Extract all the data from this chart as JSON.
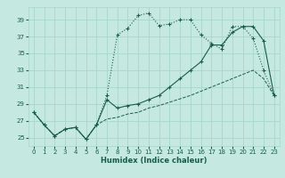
{
  "xlabel": "Humidex (Indice chaleur)",
  "background_color": "#c5e8e0",
  "grid_color": "#a8d5cc",
  "line_color": "#1a5c4a",
  "xlim": [
    -0.5,
    23.5
  ],
  "ylim": [
    24.0,
    40.5
  ],
  "yticks": [
    25,
    27,
    29,
    31,
    33,
    35,
    37,
    39
  ],
  "xticks": [
    0,
    1,
    2,
    3,
    4,
    5,
    6,
    7,
    8,
    9,
    10,
    11,
    12,
    13,
    14,
    15,
    16,
    17,
    18,
    19,
    20,
    21,
    22,
    23
  ],
  "series1_y": [
    28.0,
    26.5,
    25.2,
    26.0,
    26.2,
    24.8,
    26.5,
    30.0,
    37.2,
    38.0,
    39.5,
    39.8,
    38.3,
    38.5,
    39.0,
    39.0,
    37.2,
    36.2,
    35.5,
    38.2,
    38.2,
    36.8,
    33.0,
    30.0
  ],
  "series2_y": [
    28.0,
    26.5,
    25.2,
    26.0,
    26.2,
    24.8,
    26.5,
    29.5,
    28.5,
    28.8,
    29.0,
    29.5,
    30.0,
    31.0,
    32.0,
    33.0,
    34.0,
    36.0,
    36.0,
    37.5,
    38.2,
    38.2,
    36.5,
    30.0
  ],
  "series3_y": [
    28.0,
    26.5,
    25.2,
    26.0,
    26.2,
    24.8,
    26.5,
    27.2,
    27.4,
    27.8,
    28.0,
    28.5,
    28.8,
    29.2,
    29.6,
    30.0,
    30.5,
    31.0,
    31.5,
    32.0,
    32.5,
    33.0,
    32.0,
    30.0
  ]
}
